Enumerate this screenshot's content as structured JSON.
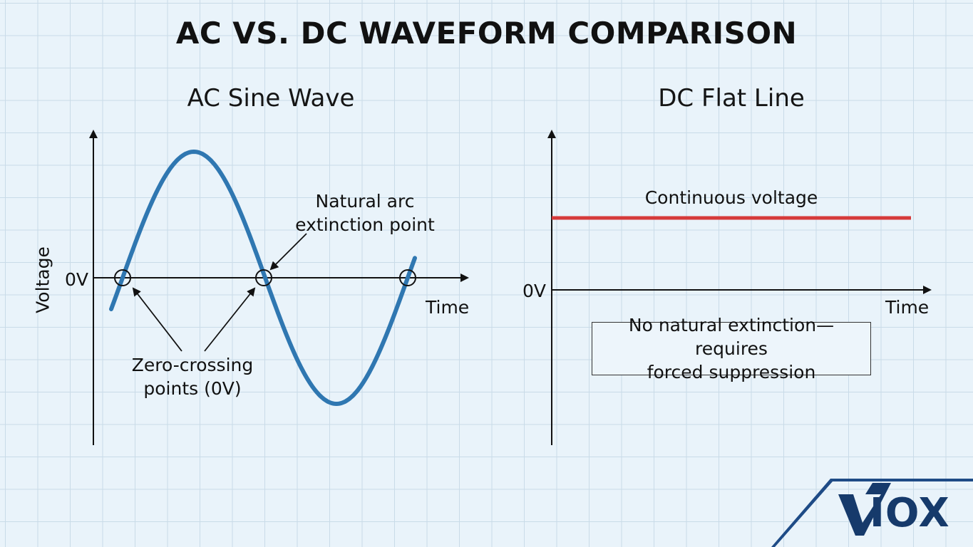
{
  "title": "AC VS. DC WAVEFORM COMPARISON",
  "ac_panel": {
    "subtitle": "AC Sine Wave",
    "y_axis_label": "Voltage",
    "zero_label": "0V",
    "x_axis_label": "Time",
    "annotation_arc": [
      "Natural arc",
      "extinction point"
    ],
    "annotation_zero": [
      "Zero-crossing",
      "points (0V)"
    ],
    "wave_color": "#2f77b1"
  },
  "dc_panel": {
    "subtitle": "DC Flat Line",
    "zero_label": "0V",
    "x_axis_label": "Time",
    "line_label": "Continuous voltage",
    "note": [
      "No natural extinction—requires",
      "forced suppression"
    ],
    "line_color": "#d63a3a"
  },
  "logo": {
    "text": "IOX",
    "brand": "VIOX",
    "color": "#163a6b"
  }
}
